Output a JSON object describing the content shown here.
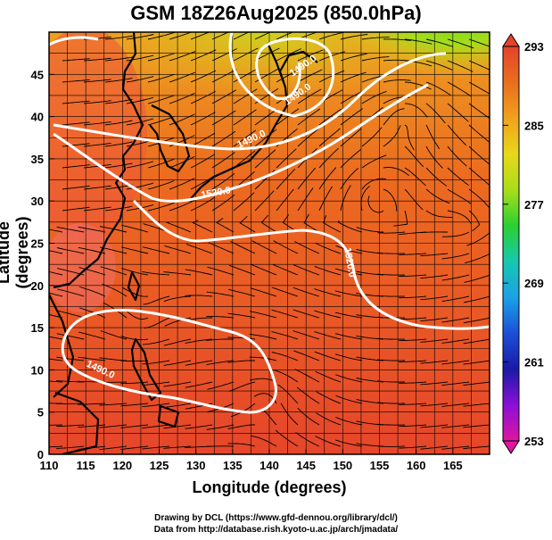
{
  "title": "GSM 18Z26Aug2025 (850.0hPa)",
  "xaxis": {
    "label": "Longitude (degrees)",
    "ticks": [
      "110",
      "115",
      "120",
      "125",
      "130",
      "135",
      "140",
      "145",
      "150",
      "155",
      "160",
      "165"
    ],
    "range": [
      110,
      170
    ]
  },
  "yaxis": {
    "label": "Latitude (degrees)",
    "ticks": [
      "0",
      "5",
      "10",
      "15",
      "20",
      "25",
      "30",
      "35",
      "40",
      "45"
    ],
    "range": [
      0,
      50
    ]
  },
  "colorbar": {
    "ticks": [
      "293",
      "285",
      "277",
      "269",
      "261",
      "253"
    ],
    "range": [
      253,
      293
    ],
    "colors": [
      "#e0169e",
      "#8a10d8",
      "#1a1aa6",
      "#1c4fd8",
      "#1aa2e6",
      "#16c8b0",
      "#2ad032",
      "#a8de18",
      "#e8d81a",
      "#f0a21c",
      "#ea6e1c",
      "#e4432c"
    ]
  },
  "contours": {
    "color": "#ffffff",
    "labels": [
      "1490.0",
      "1490.0",
      "1490.0",
      "1520.0",
      "1520.0",
      "1490.0"
    ]
  },
  "credits": {
    "line1": "Drawing by DCL (https://www.gfd-dennou.org/library/dcl/)",
    "line2": "Data from http://database.rish.kyoto-u.ac.jp/arch/jmadata/"
  }
}
